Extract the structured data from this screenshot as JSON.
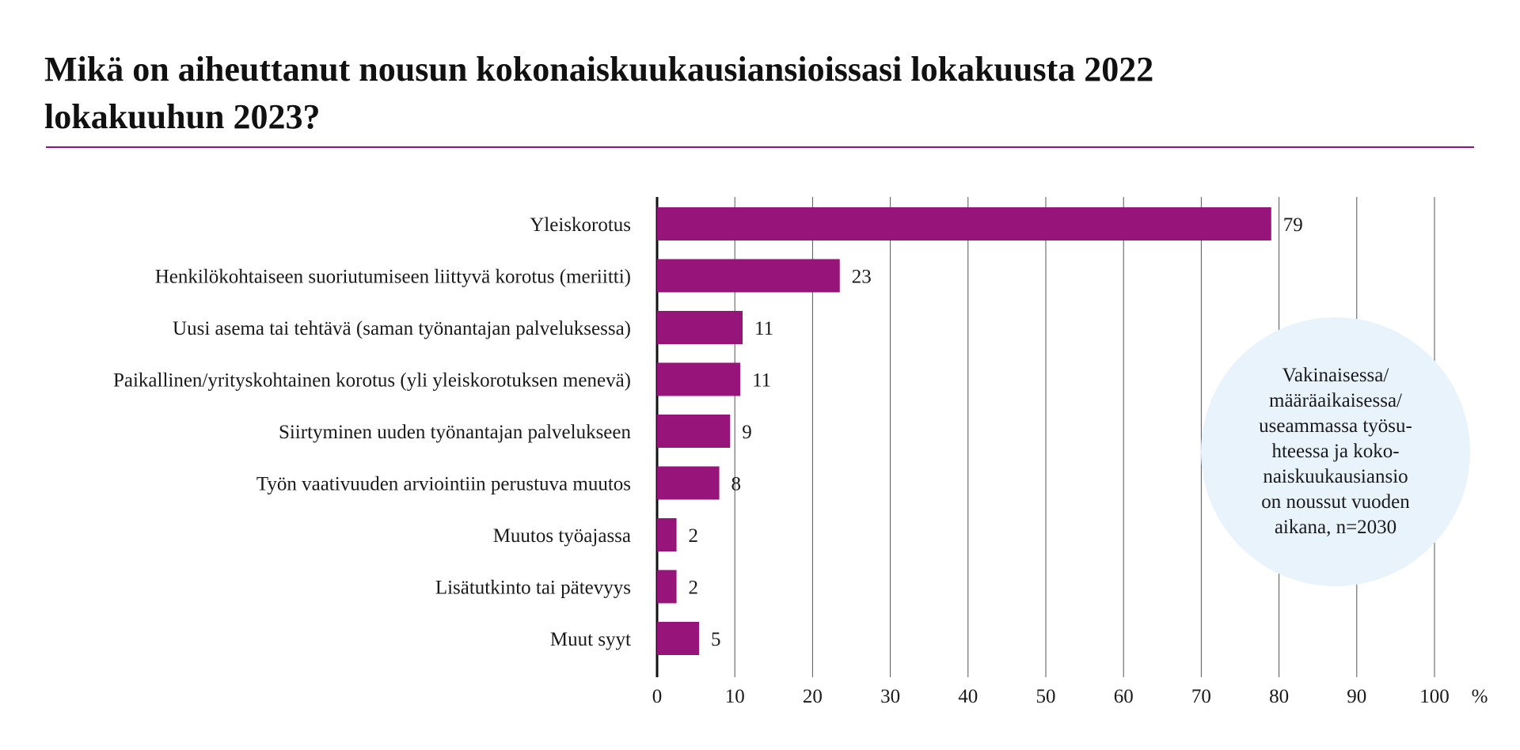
{
  "title": "Mikä on aiheuttanut nousun kokonaiskuukausiansioissasi lokakuusta 2022 lokakuuhun 2023?",
  "note": "Vakinaisessa/\nmääräaikaisessa/\nuseammassa työsu-\nhteessa ja koko-\nnaiskuukausiansio\non noussut vuoden\naikana, n=2030",
  "colors": {
    "bar": "#97157a",
    "rule": "#97157a",
    "note_bg": "#e8f3fc",
    "grid": "#555555"
  },
  "chart_data": {
    "type": "bar",
    "orientation": "horizontal",
    "categories": [
      "Yleiskorotus",
      "Henkilökohtaiseen suoriutumiseen liittyvä korotus (meriitti)",
      "Uusi asema tai tehtävä (saman työnantajan palveluksessa)",
      "Paikallinen/yrityskohtainen korotus (yli yleiskorotuksen menevä)",
      "Siirtyminen uuden työnantajan palvelukseen",
      "Työn vaativuuden arviointiin perustuva muutos",
      "Muutos työajassa",
      "Lisätutkinto tai pätevyys",
      "Muut syyt"
    ],
    "values": [
      79,
      23.5,
      11,
      10.7,
      9.4,
      8,
      2.5,
      2.5,
      5.4
    ],
    "value_labels": [
      "79",
      "23",
      "11",
      "11",
      "9",
      "8",
      "2",
      "2",
      "5"
    ],
    "xlim": [
      0,
      100
    ],
    "xticks": [
      "0",
      "10",
      "20",
      "30",
      "40",
      "50",
      "60",
      "70",
      "80",
      "90",
      "100"
    ],
    "xunit": "%",
    "grid": true
  }
}
